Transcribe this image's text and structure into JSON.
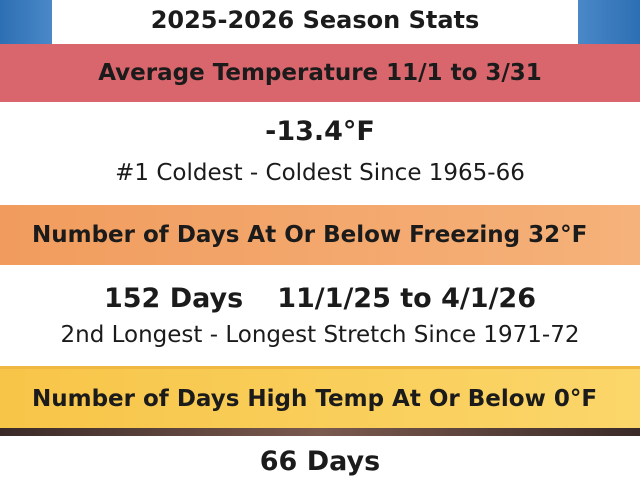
{
  "header": {
    "title": "2025-2026 Season Stats"
  },
  "sections": [
    {
      "heading": "Average Temperature 11/1 to 3/31",
      "value": "-13.4°F",
      "note": "#1 Coldest - Coldest Since 1965-66"
    },
    {
      "heading": "Number of Days At Or Below Freezing 32°F",
      "value": "152 Days",
      "range": "11/1/25 to 4/1/26",
      "note": "2nd Longest - Longest Stretch Since 1971-72"
    },
    {
      "heading": "Number of Days High Temp At Or Below 0°F",
      "value": "66 Days"
    }
  ]
}
